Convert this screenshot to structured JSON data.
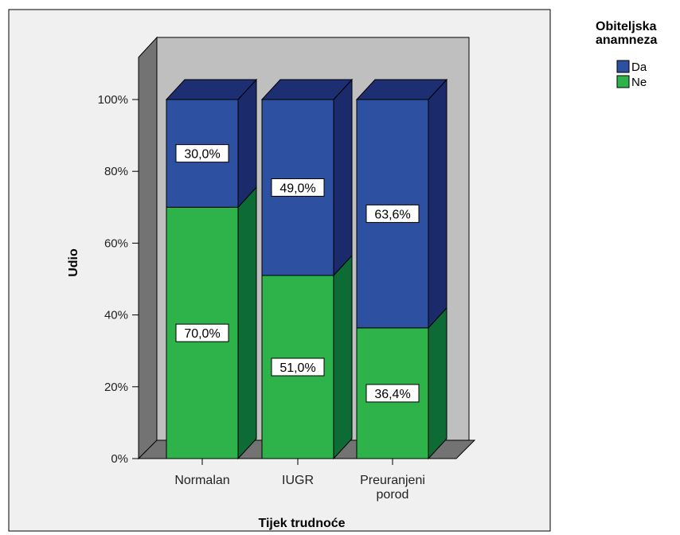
{
  "chart_data": {
    "type": "bar",
    "stacked": true,
    "percent": true,
    "three_d": true,
    "categories": [
      [
        "Normalan"
      ],
      [
        "IUGR"
      ],
      [
        "Preuranjeni",
        "porod"
      ]
    ],
    "series": [
      {
        "name": "Ne",
        "color": "#2db34a",
        "side_color": "#0d6b35",
        "top_color": "#16823c",
        "values": [
          70.0,
          51.0,
          36.4
        ],
        "labels": [
          "70,0%",
          "51,0%",
          "36,4%"
        ]
      },
      {
        "name": "Da",
        "color": "#2d50a1",
        "side_color": "#1b2a6b",
        "top_color": "#1d2f72",
        "values": [
          30.0,
          49.0,
          63.6
        ],
        "labels": [
          "30,0%",
          "49,0%",
          "63,6%"
        ]
      }
    ],
    "xlabel": "Tijek trudnoće",
    "ylabel": "Udio",
    "ylim": [
      0,
      100
    ],
    "yticks": [
      "0%",
      "20%",
      "40%",
      "60%",
      "80%",
      "100%"
    ],
    "legend": {
      "title": [
        "Obiteljska",
        "anamneza"
      ],
      "placement": "top-right",
      "order": [
        "Da",
        "Ne"
      ]
    },
    "colors": {
      "plot_back_wall": "#bfbfbf",
      "plot_side_wall": "#737373",
      "plot_floor": "#737373",
      "frame_background": "#f0f0f0"
    }
  }
}
